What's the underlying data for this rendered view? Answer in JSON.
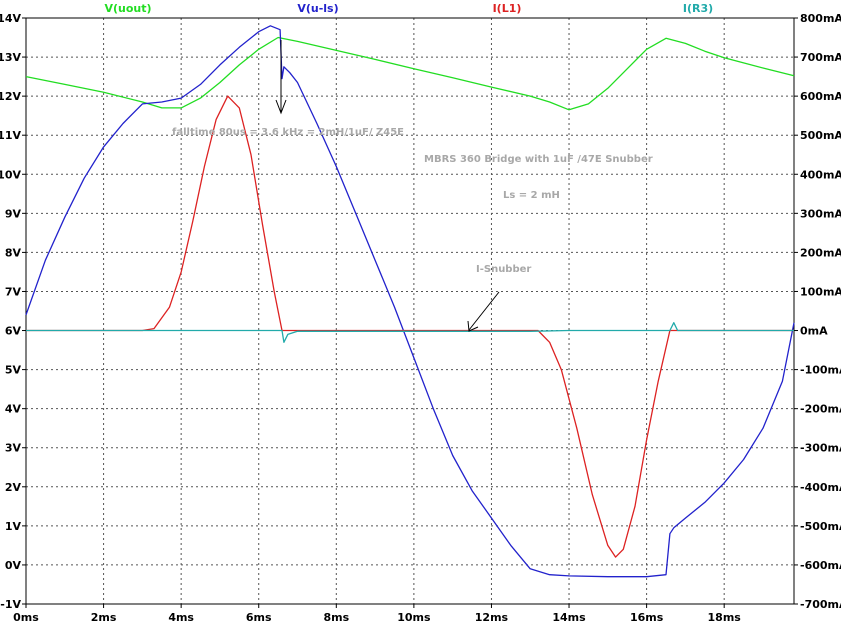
{
  "chart_data": {
    "type": "line",
    "x_ticks": [
      "0ms",
      "2ms",
      "4ms",
      "6ms",
      "8ms",
      "10ms",
      "12ms",
      "14ms",
      "16ms",
      "18ms"
    ],
    "y_left_ticks": [
      "-1V",
      "0V",
      "1V",
      "2V",
      "3V",
      "4V",
      "5V",
      "6V",
      "7V",
      "8V",
      "9V",
      "10V",
      "11V",
      "12V",
      "13V",
      "14V"
    ],
    "y_right_ticks": [
      "-700mA",
      "-600mA",
      "-500mA",
      "-400mA",
      "-300mA",
      "-200mA",
      "-100mA",
      "0mA",
      "100mA",
      "200mA",
      "300mA",
      "400mA",
      "500mA",
      "600mA",
      "700mA",
      "800mA"
    ],
    "xlim": [
      0,
      19.8
    ],
    "ylim_left": [
      -1,
      14
    ],
    "ylim_right": [
      -700,
      800
    ],
    "grid": true,
    "series": [
      {
        "name": "V(uout)",
        "color": "#22dd22",
        "axis": "left",
        "points": [
          [
            0,
            12.5
          ],
          [
            1,
            12.3
          ],
          [
            2,
            12.1
          ],
          [
            3,
            11.85
          ],
          [
            3.5,
            11.7
          ],
          [
            4,
            11.7
          ],
          [
            4.5,
            11.95
          ],
          [
            5,
            12.35
          ],
          [
            5.5,
            12.8
          ],
          [
            6,
            13.2
          ],
          [
            6.5,
            13.5
          ],
          [
            7,
            13.4
          ],
          [
            8,
            13.17
          ],
          [
            9,
            12.94
          ],
          [
            10,
            12.7
          ],
          [
            11,
            12.47
          ],
          [
            12,
            12.23
          ],
          [
            13,
            12.0
          ],
          [
            13.5,
            11.85
          ],
          [
            14,
            11.65
          ],
          [
            14.5,
            11.8
          ],
          [
            15,
            12.2
          ],
          [
            15.5,
            12.7
          ],
          [
            16,
            13.2
          ],
          [
            16.5,
            13.48
          ],
          [
            17,
            13.35
          ],
          [
            17.5,
            13.15
          ],
          [
            18,
            12.98
          ],
          [
            18.5,
            12.85
          ],
          [
            19,
            12.72
          ],
          [
            19.8,
            12.52
          ]
        ]
      },
      {
        "name": "V(u-ls)",
        "color": "#2222cc",
        "axis": "left",
        "points": [
          [
            0,
            6.4
          ],
          [
            0.5,
            7.8
          ],
          [
            1,
            8.9
          ],
          [
            1.5,
            9.9
          ],
          [
            2,
            10.7
          ],
          [
            2.5,
            11.3
          ],
          [
            3,
            11.8
          ],
          [
            3.5,
            11.85
          ],
          [
            4,
            11.95
          ],
          [
            4.5,
            12.3
          ],
          [
            5,
            12.8
          ],
          [
            5.5,
            13.25
          ],
          [
            6,
            13.65
          ],
          [
            6.3,
            13.8
          ],
          [
            6.55,
            13.7
          ],
          [
            6.6,
            12.45
          ],
          [
            6.65,
            12.75
          ],
          [
            6.8,
            12.6
          ],
          [
            7,
            12.35
          ],
          [
            7.5,
            11.3
          ],
          [
            8,
            10.2
          ],
          [
            8.5,
            9.0
          ],
          [
            9,
            7.8
          ],
          [
            9.5,
            6.6
          ],
          [
            10,
            5.3
          ],
          [
            10.5,
            4.0
          ],
          [
            11,
            2.8
          ],
          [
            11.5,
            1.9
          ],
          [
            12,
            1.2
          ],
          [
            12.5,
            0.5
          ],
          [
            13,
            -0.1
          ],
          [
            13.5,
            -0.25
          ],
          [
            14,
            -0.28
          ],
          [
            15,
            -0.3
          ],
          [
            16,
            -0.3
          ],
          [
            16.5,
            -0.25
          ],
          [
            16.6,
            0.8
          ],
          [
            16.7,
            0.95
          ],
          [
            17,
            1.2
          ],
          [
            17.5,
            1.6
          ],
          [
            18,
            2.1
          ],
          [
            18.5,
            2.7
          ],
          [
            19,
            3.5
          ],
          [
            19.5,
            4.7
          ],
          [
            19.8,
            6.2
          ]
        ]
      },
      {
        "name": "I(L1)",
        "color": "#dd2222",
        "axis": "right",
        "points": [
          [
            0,
            0
          ],
          [
            3,
            0
          ],
          [
            3.3,
            5
          ],
          [
            3.7,
            60
          ],
          [
            4,
            150
          ],
          [
            4.3,
            280
          ],
          [
            4.6,
            420
          ],
          [
            4.9,
            540
          ],
          [
            5.2,
            600
          ],
          [
            5.5,
            570
          ],
          [
            5.8,
            450
          ],
          [
            6.1,
            270
          ],
          [
            6.4,
            100
          ],
          [
            6.6,
            0
          ],
          [
            7,
            0
          ],
          [
            13.2,
            0
          ],
          [
            13.5,
            -30
          ],
          [
            13.8,
            -100
          ],
          [
            14.2,
            -250
          ],
          [
            14.6,
            -420
          ],
          [
            15,
            -550
          ],
          [
            15.2,
            -580
          ],
          [
            15.4,
            -560
          ],
          [
            15.7,
            -450
          ],
          [
            16,
            -280
          ],
          [
            16.3,
            -130
          ],
          [
            16.6,
            0
          ],
          [
            16.7,
            0
          ],
          [
            19.8,
            0
          ]
        ]
      },
      {
        "name": "I(R3)",
        "color": "#22aaaa",
        "axis": "right",
        "points": [
          [
            0,
            0
          ],
          [
            6.5,
            0
          ],
          [
            6.6,
            0
          ],
          [
            6.65,
            -30
          ],
          [
            6.75,
            -10
          ],
          [
            7,
            -2
          ],
          [
            13,
            -2
          ],
          [
            14,
            0
          ],
          [
            16.6,
            0
          ],
          [
            16.7,
            20
          ],
          [
            16.8,
            0
          ],
          [
            19.8,
            0
          ]
        ]
      }
    ],
    "annotations": [
      {
        "text": "falltime 80us  = 3.6 kHz = 2mH/1uF/ Z45E"
      },
      {
        "text": "MBRS 360 Bridge with 1uF /47E Snubber"
      },
      {
        "text": "Ls = 2 mH"
      },
      {
        "text": "I-Snubber"
      }
    ]
  }
}
